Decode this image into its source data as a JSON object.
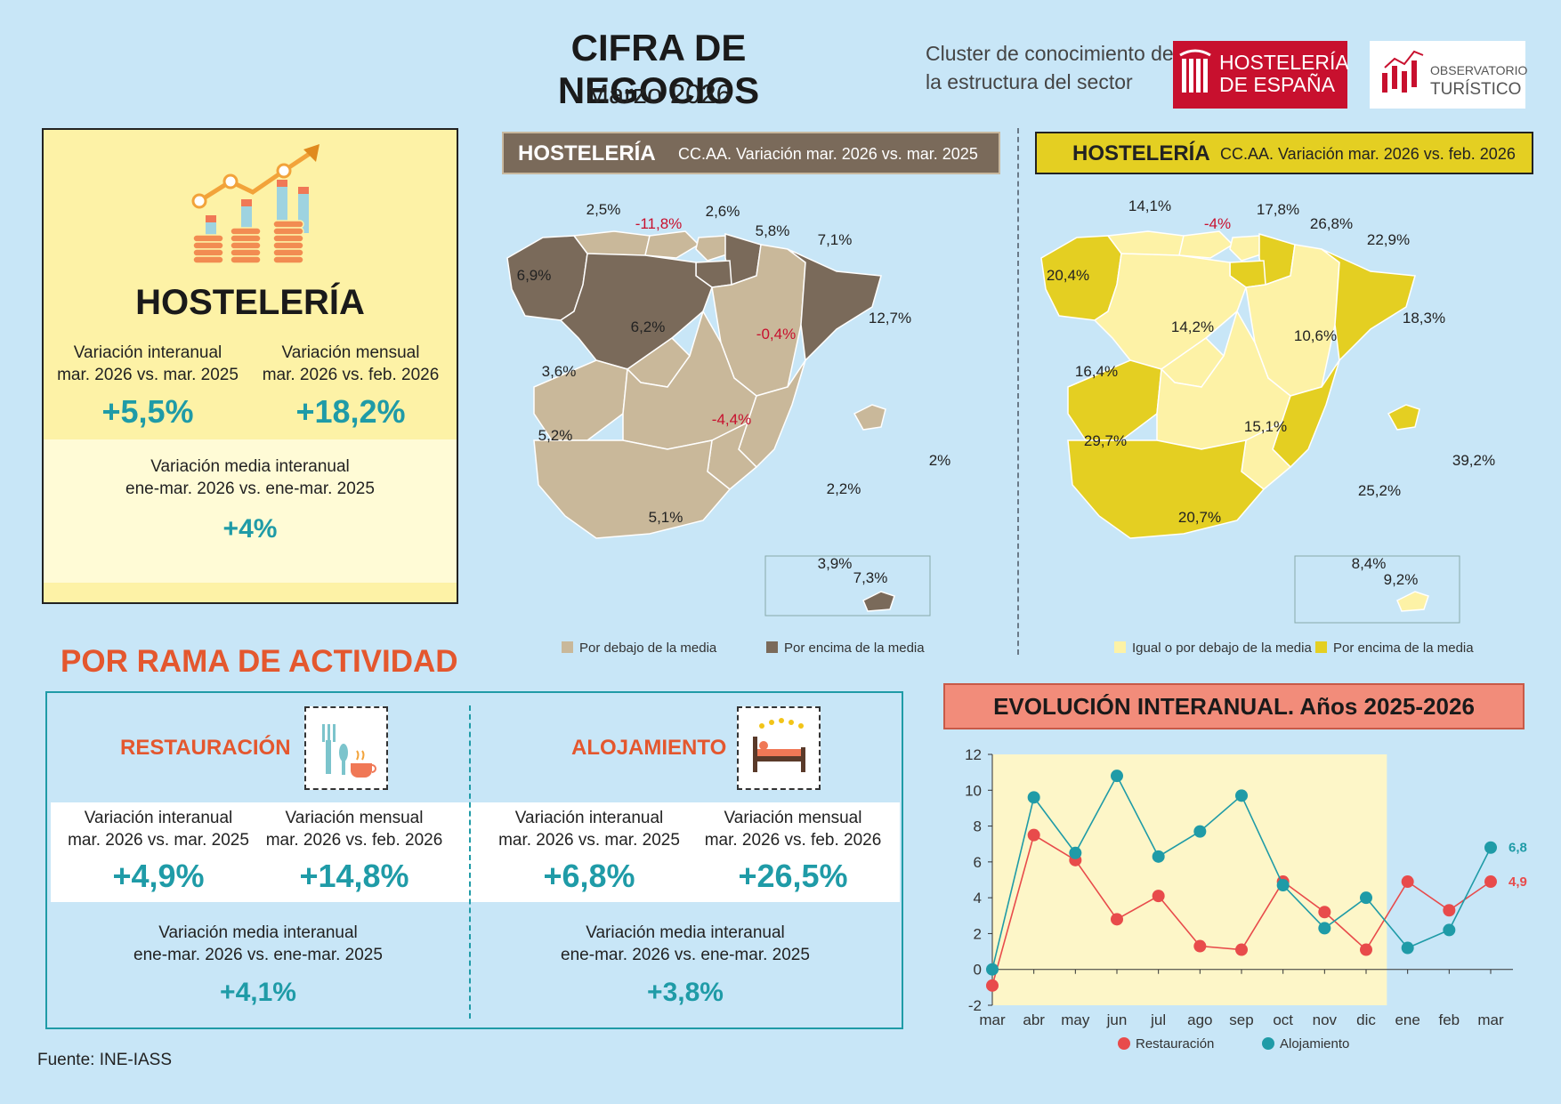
{
  "header": {
    "title": "CIFRA DE NEGOCIOS",
    "subtitle": "Marzo 2026",
    "cluster_line1": "Cluster de conocimiento de",
    "cluster_line2": "la estructura del sector",
    "logo_he_line1": "HOSTELERÍA",
    "logo_he_line2": "DE ESPAÑA",
    "logo_ot_line1": "OBSERVATORIO",
    "logo_ot_line2": "TURÍSTICO"
  },
  "summary": {
    "title": "HOSTELERÍA",
    "interanual_label1": "Variación interanual",
    "interanual_label2": "mar. 2026 vs. mar. 2025",
    "interanual_value": "+5,5%",
    "mensual_label1": "Variación mensual",
    "mensual_label2": "mar. 2026 vs. feb. 2026",
    "mensual_value": "+18,2%",
    "media_label1": "Variación media interanual",
    "media_label2": "ene-mar. 2026 vs. ene-mar. 2025",
    "media_value": "+4%"
  },
  "map1": {
    "header_bold": "HOSTELERÍA",
    "header_sub": "CC.AA. Variación mar. 2026 vs. mar. 2025",
    "legend_below": "Por debajo de la media",
    "legend_above": "Por encima de la media",
    "color_below": "#c9b89a",
    "color_above": "#7a6a5a",
    "labels": {
      "galicia": "6,9%",
      "asturias": "2,5%",
      "cantabria": "-11,8%",
      "pais_vasco": "2,6%",
      "navarra": "5,8%",
      "rioja": "7,1%",
      "castilla_leon": "6,2%",
      "aragon": "-0,4%",
      "cataluna": "12,7%",
      "madrid": "3,6%",
      "extremadura": "5,2%",
      "castilla_mancha": "-4,4%",
      "valencia": "2,2%",
      "baleares": "2%",
      "andalucia": "5,1%",
      "murcia": "3,9%",
      "canarias": "7,3%"
    }
  },
  "map2": {
    "header_bold": "HOSTELERÍA",
    "header_sub": "CC.AA. Variación mar. 2026 vs. feb. 2026",
    "legend_below": "Igual o por debajo de la media",
    "legend_above": "Por encima de la media",
    "color_below": "#fdf2a6",
    "color_above": "#e4cf22",
    "labels": {
      "galicia": "20,4%",
      "asturias": "14,1%",
      "cantabria": "-4%",
      "pais_vasco": "17,8%",
      "navarra": "26,8%",
      "rioja": "22,9%",
      "castilla_leon": "14,2%",
      "aragon": "10,6%",
      "cataluna": "18,3%",
      "madrid": "16,4%",
      "extremadura": "29,7%",
      "castilla_mancha": "15,1%",
      "valencia": "25,2%",
      "baleares": "39,2%",
      "andalucia": "20,7%",
      "murcia": "8,4%",
      "canarias": "9,2%"
    }
  },
  "rama": {
    "title": "POR RAMA DE ACTIVIDAD",
    "restauracion": {
      "title": "RESTAURACIÓN",
      "interanual_label1": "Variación interanual",
      "interanual_label2": "mar. 2026 vs. mar. 2025",
      "interanual_value": "+4,9%",
      "mensual_label1": "Variación mensual",
      "mensual_label2": "mar. 2026 vs. feb. 2026",
      "mensual_value": "+14,8%",
      "media_label1": "Variación media interanual",
      "media_label2": "ene-mar. 2026 vs. ene-mar. 2025",
      "media_value": "+4,1%"
    },
    "alojamiento": {
      "title": "ALOJAMIENTO",
      "interanual_label1": "Variación interanual",
      "interanual_label2": "mar. 2026 vs. mar. 2025",
      "interanual_value": "+6,8%",
      "mensual_label1": "Variación mensual",
      "mensual_label2": "mar. 2026 vs. feb. 2026",
      "mensual_value": "+26,5%",
      "media_label1": "Variación media interanual",
      "media_label2": "ene-mar. 2026 vs. ene-mar. 2025",
      "media_value": "+3,8%"
    }
  },
  "evolution": {
    "title": "EVOLUCIÓN INTERANUAL. Años 2025-2026"
  },
  "chart_data": {
    "type": "line",
    "title": "EVOLUCIÓN INTERANUAL. Años 2025-2026",
    "categories": [
      "mar",
      "abr",
      "may",
      "jun",
      "jul",
      "ago",
      "sep",
      "oct",
      "nov",
      "dic",
      "ene",
      "feb",
      "mar"
    ],
    "ylim": [
      -2,
      12
    ],
    "yticks": [
      -2,
      0,
      2,
      4,
      6,
      8,
      10,
      12
    ],
    "highlight_2025": true,
    "series": [
      {
        "name": "Restauración",
        "color": "#e84b4b",
        "values": [
          -0.9,
          7.5,
          6.1,
          2.8,
          4.1,
          1.3,
          1.1,
          4.9,
          3.2,
          1.1,
          4.9,
          3.3,
          4.9
        ],
        "end_label": "4,9"
      },
      {
        "name": "Alojamiento",
        "color": "#1f9ba7",
        "values": [
          0.0,
          9.6,
          6.5,
          10.8,
          6.3,
          7.7,
          9.7,
          4.7,
          2.3,
          4.0,
          1.2,
          2.2,
          6.8
        ],
        "end_label": "6,8"
      }
    ],
    "legend": "bottom"
  },
  "source": "Fuente: INE-IASS"
}
